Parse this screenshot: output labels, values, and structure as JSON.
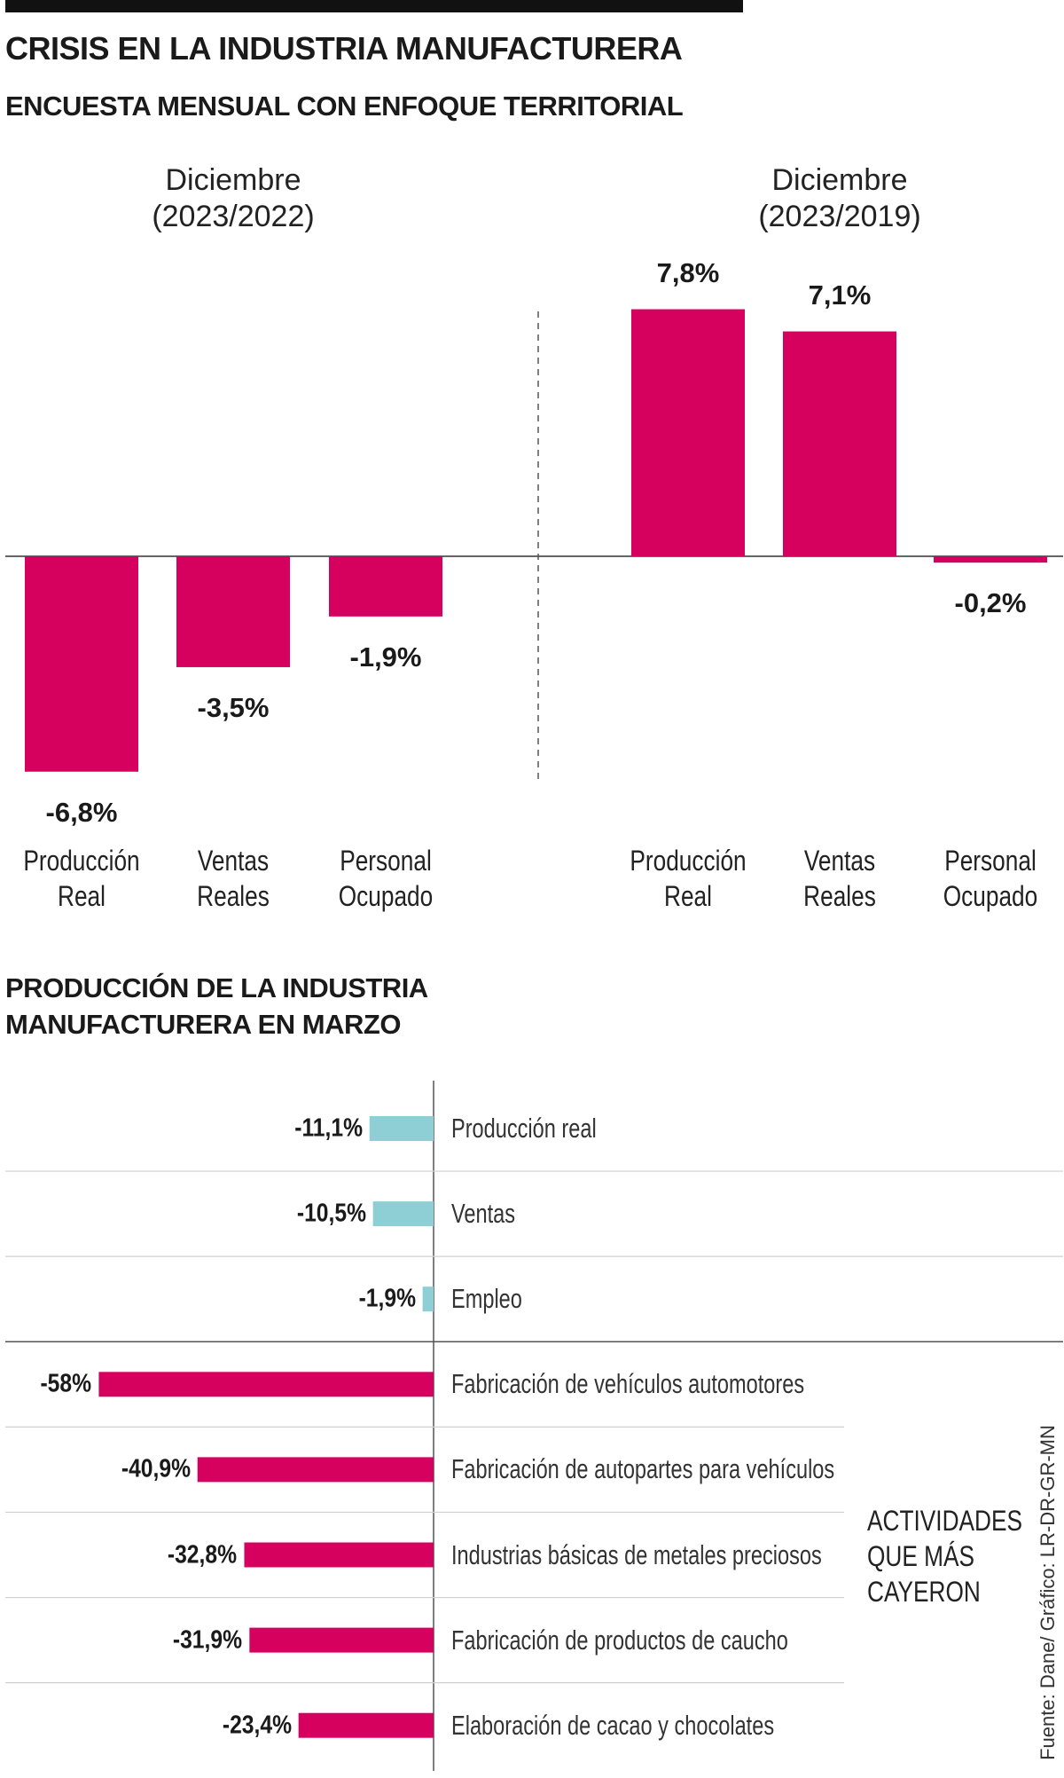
{
  "chart_data": [
    {
      "type": "bar",
      "title": "CRISIS EN LA INDUSTRIA MANUFACTURERA",
      "subtitle": "ENCUESTA MENSUAL CON ENFOQUE TERRITORIAL",
      "color": "#d6005f",
      "groups": [
        {
          "name": "Diciembre (2023/2022)",
          "categories": [
            "Producción Real",
            "Ventas Reales",
            "Personal Ocupado"
          ],
          "values": [
            -6.8,
            -3.5,
            -1.9
          ],
          "value_labels": [
            "-6,8%",
            "-3,5%",
            "-1,9%"
          ]
        },
        {
          "name": "Diciembre (2023/2019)",
          "categories": [
            "Producción Real",
            "Ventas Reales",
            "Personal Ocupado"
          ],
          "values": [
            7.8,
            7.1,
            -0.2
          ],
          "value_labels": [
            "7,8%",
            "7,1%",
            "-0,2%"
          ]
        }
      ]
    },
    {
      "type": "hbar",
      "title": "PRODUCCIÓN DE LA INDUSTRIA MANUFACTURERA EN MARZO",
      "categories": [
        "Producción real",
        "Ventas",
        "Empleo",
        "Fabricación de vehículos automotores",
        "Fabricación de autopartes para vehículos",
        "Industrias básicas de metales preciosos",
        "Fabricación de productos de caucho",
        "Elaboración de cacao y chocolates"
      ],
      "values": [
        -11.1,
        -10.5,
        -1.9,
        -58,
        -40.9,
        -32.8,
        -31.9,
        -23.4
      ],
      "value_labels": [
        "-11,1%",
        "-10,5%",
        "-1,9%",
        "-58%",
        "-40,9%",
        "-32,8%",
        "-31,9%",
        "-23,4%"
      ],
      "colors": [
        "#8ecfd6",
        "#8ecfd6",
        "#8ecfd6",
        "#d6005f",
        "#d6005f",
        "#d6005f",
        "#d6005f",
        "#d6005f"
      ],
      "annotation": "ACTIVIDADES QUE MÁS CAYERON",
      "source": "Fuente: Dane/ Gráfico: LR-DR-GR-MN"
    }
  ]
}
